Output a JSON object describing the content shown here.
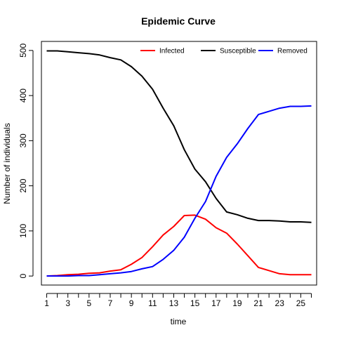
{
  "chart_data": {
    "type": "line",
    "title": "Epidemic Curve",
    "xlabel": "time",
    "ylabel": "Number of individuals",
    "x": [
      1,
      2,
      3,
      4,
      5,
      6,
      7,
      8,
      9,
      10,
      11,
      12,
      13,
      14,
      15,
      16,
      17,
      18,
      19,
      20,
      21,
      22,
      23,
      24,
      25,
      26
    ],
    "xticks": [
      1,
      3,
      5,
      7,
      9,
      11,
      13,
      15,
      17,
      19,
      21,
      23,
      25
    ],
    "yticks": [
      0,
      100,
      200,
      300,
      400,
      500
    ],
    "xlim": [
      0.5,
      26.5
    ],
    "ylim": [
      -20,
      520
    ],
    "grid": false,
    "legend_position": "top-right",
    "series": [
      {
        "name": "Infected",
        "color": "#ff0000",
        "values": [
          0,
          1,
          3,
          4,
          6,
          7,
          11,
          14,
          26,
          41,
          65,
          91,
          110,
          134,
          135,
          126,
          107,
          95,
          71,
          45,
          19,
          12,
          5,
          3,
          3,
          3
        ]
      },
      {
        "name": "Susceptible",
        "color": "#000000",
        "values": [
          499,
          499,
          497,
          495,
          493,
          490,
          484,
          479,
          464,
          443,
          414,
          372,
          333,
          280,
          237,
          209,
          172,
          142,
          136,
          128,
          123,
          123,
          122,
          120,
          120,
          119
        ]
      },
      {
        "name": "Removed",
        "color": "#0000ff",
        "values": [
          0,
          0,
          0,
          1,
          1,
          3,
          5,
          7,
          10,
          16,
          21,
          37,
          57,
          86,
          128,
          165,
          221,
          263,
          293,
          327,
          358,
          365,
          372,
          376,
          376,
          377
        ]
      }
    ]
  }
}
